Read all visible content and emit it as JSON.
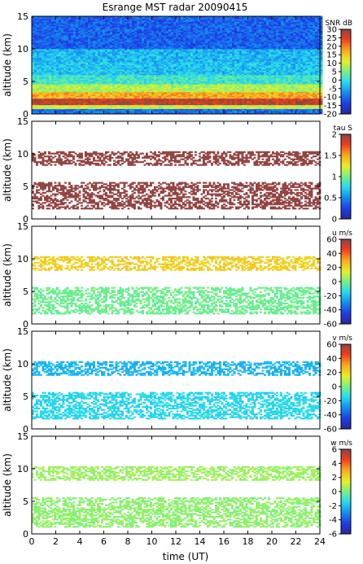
{
  "figure": {
    "title": "Esrange MST radar 20090415",
    "xlabel": "time (UT)"
  },
  "chart_data": [
    {
      "type": "heatmap",
      "ylabel": "altitude (km)",
      "xlim": [
        0,
        24
      ],
      "ylim": [
        0,
        15
      ],
      "xticks": [
        "0",
        "2",
        "4",
        "6",
        "8",
        "10",
        "12",
        "14",
        "16",
        "18",
        "20",
        "22",
        "24"
      ],
      "yticks": [
        "0",
        "5",
        "10",
        "15"
      ],
      "colorbar": {
        "label": "SNR dB",
        "range": [
          -20,
          30
        ],
        "ticks": [
          "30",
          "25",
          "20",
          "15",
          "10",
          "5",
          "0",
          "-5",
          "-10",
          "-15",
          "-20"
        ]
      },
      "fill": "full",
      "layers": [
        {
          "from": 0.0,
          "to": 0.8,
          "value": -10
        },
        {
          "from": 0.8,
          "to": 1.4,
          "value": 10
        },
        {
          "from": 1.4,
          "to": 2.4,
          "value": 27
        },
        {
          "from": 2.4,
          "to": 3.4,
          "value": 17
        },
        {
          "from": 3.4,
          "to": 4.6,
          "value": 8
        },
        {
          "from": 4.6,
          "to": 6.0,
          "value": 1
        },
        {
          "from": 6.0,
          "to": 8.0,
          "value": -3
        },
        {
          "from": 8.0,
          "to": 10.0,
          "value": -4
        },
        {
          "from": 10.0,
          "to": 15.0,
          "value": -11
        }
      ]
    },
    {
      "type": "heatmap",
      "ylabel": "altitude (km)",
      "xlim": [
        0,
        24
      ],
      "ylim": [
        0,
        15
      ],
      "xticks": [
        "0",
        "2",
        "4",
        "6",
        "8",
        "10",
        "12",
        "14",
        "16",
        "18",
        "20",
        "22",
        "24"
      ],
      "yticks": [
        "0",
        "5",
        "10",
        "15"
      ],
      "colorbar": {
        "label": "tau S",
        "range": [
          0,
          2
        ],
        "ticks": [
          "2",
          "1.5",
          "1",
          "0.5",
          "0"
        ]
      },
      "fill": "sparse",
      "layers": [
        {
          "from": 1.5,
          "to": 5.5,
          "value": 2.0
        },
        {
          "from": 8.2,
          "to": 10.4,
          "value": 2.0
        }
      ]
    },
    {
      "type": "heatmap",
      "ylabel": "altitude (km)",
      "xlim": [
        0,
        24
      ],
      "ylim": [
        0,
        15
      ],
      "xticks": [
        "0",
        "2",
        "4",
        "6",
        "8",
        "10",
        "12",
        "14",
        "16",
        "18",
        "20",
        "22",
        "24"
      ],
      "yticks": [
        "0",
        "5",
        "10",
        "15"
      ],
      "colorbar": {
        "label": "u m/s",
        "range": [
          -60,
          60
        ],
        "ticks": [
          "60",
          "40",
          "20",
          "0",
          "-20",
          "-40",
          "-60"
        ]
      },
      "fill": "sparse",
      "layers": [
        {
          "from": 1.5,
          "to": 5.5,
          "value": -2
        },
        {
          "from": 8.2,
          "to": 10.4,
          "value": 22
        }
      ]
    },
    {
      "type": "heatmap",
      "ylabel": "altitude (km)",
      "xlim": [
        0,
        24
      ],
      "ylim": [
        0,
        15
      ],
      "xticks": [
        "0",
        "2",
        "4",
        "6",
        "8",
        "10",
        "12",
        "14",
        "16",
        "18",
        "20",
        "22",
        "24"
      ],
      "yticks": [
        "0",
        "5",
        "10",
        "15"
      ],
      "colorbar": {
        "label": "v m/s",
        "range": [
          -60,
          60
        ],
        "ticks": [
          "60",
          "40",
          "20",
          "0",
          "-20",
          "-40",
          "-60"
        ]
      },
      "fill": "sparse",
      "layers": [
        {
          "from": 1.5,
          "to": 5.5,
          "value": -15
        },
        {
          "from": 8.2,
          "to": 10.4,
          "value": -22
        }
      ]
    },
    {
      "type": "heatmap",
      "ylabel": "altitude (km)",
      "xlim": [
        0,
        24
      ],
      "ylim": [
        0,
        15
      ],
      "xticks": [
        "0",
        "2",
        "4",
        "6",
        "8",
        "10",
        "12",
        "14",
        "16",
        "18",
        "20",
        "22",
        "24"
      ],
      "yticks": [
        "0",
        "5",
        "10",
        "15"
      ],
      "colorbar": {
        "label": "w m/s",
        "range": [
          -6,
          6
        ],
        "ticks": [
          "6",
          "4",
          "2",
          "0",
          "-2",
          "-4",
          "-6"
        ]
      },
      "fill": "sparse",
      "layers": [
        {
          "from": 1.0,
          "to": 5.5,
          "value": 0.3
        },
        {
          "from": 8.2,
          "to": 10.4,
          "value": 0.5
        }
      ]
    }
  ]
}
